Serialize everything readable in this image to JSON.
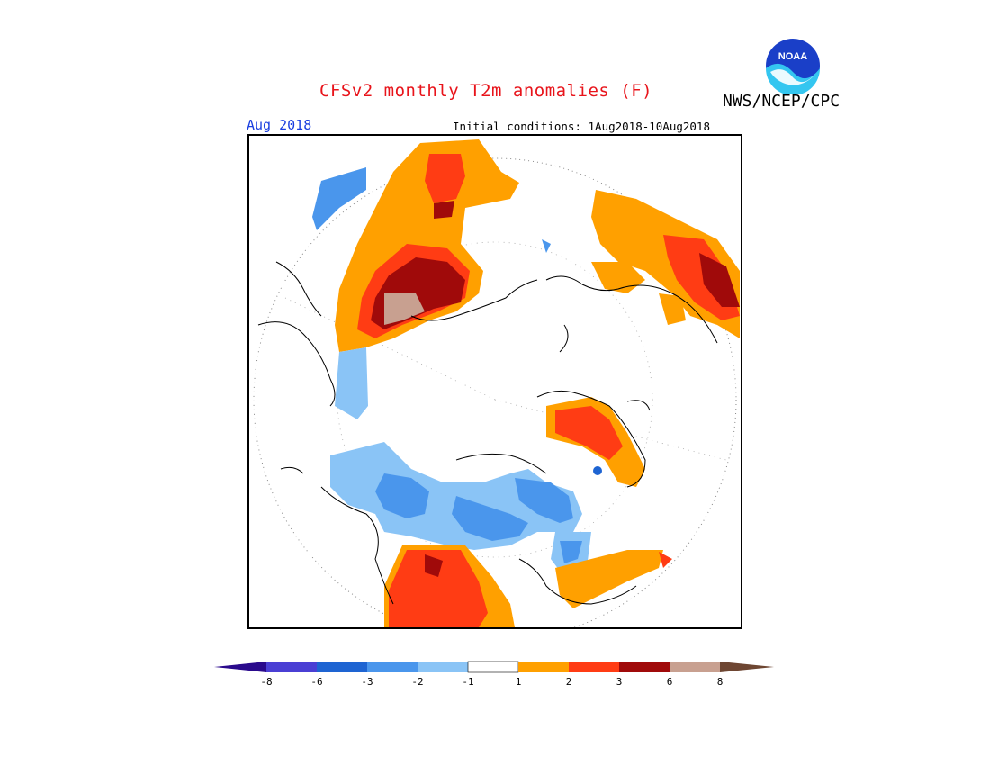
{
  "header": {
    "title": "CFSv2 monthly T2m anomalies (F)",
    "agency": "NWS/NCEP/CPC",
    "logo_text": "NOAA",
    "valid_month": "Aug 2018",
    "initial_conditions": "Initial conditions: 1Aug2018-10Aug2018"
  },
  "legend": {
    "ticks": [
      "-8",
      "-6",
      "-3",
      "-2",
      "-1",
      "1",
      "2",
      "3",
      "6",
      "8"
    ],
    "colors": [
      "#2a0a8c",
      "#4a3fd4",
      "#1e64d2",
      "#4a96ec",
      "#8ac4f6",
      "#ffffff",
      "#ffa000",
      "#ff3c14",
      "#a00a0a",
      "#c8a090",
      "#6e4632"
    ]
  },
  "map": {
    "projection": "north-polar-stereographic",
    "variable": "T2m anomaly",
    "units": "F"
  }
}
